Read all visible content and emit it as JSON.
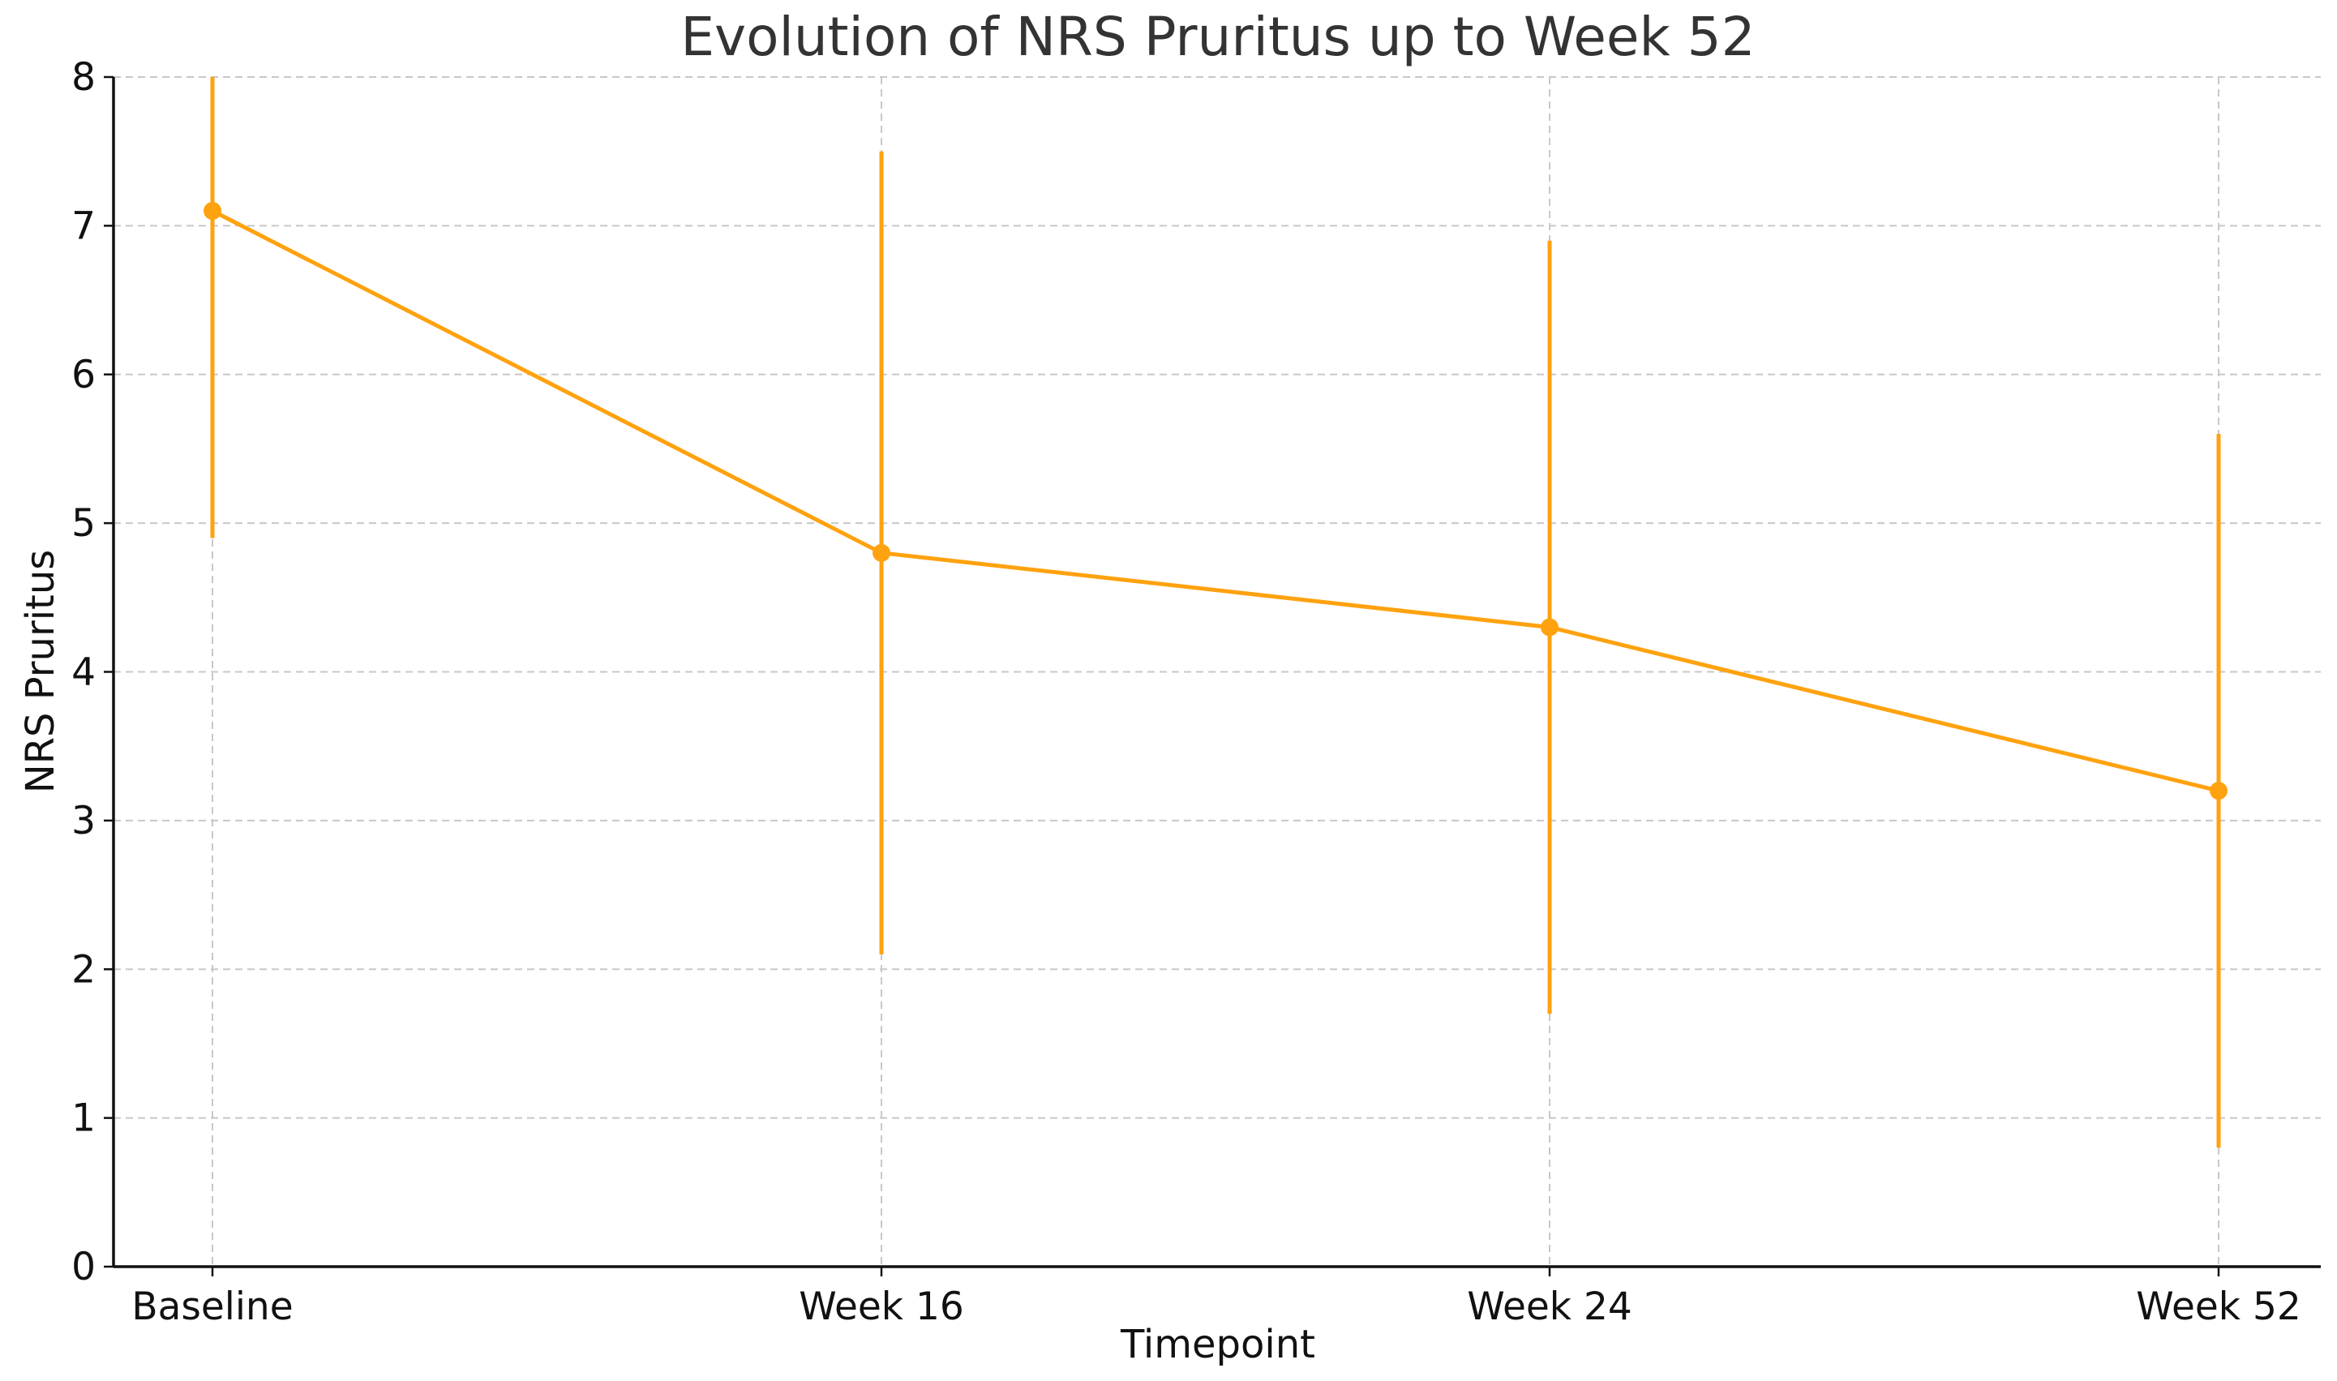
{
  "chart_data": {
    "type": "line",
    "title": "Evolution of NRS Pruritus up to Week 52",
    "xlabel": "Timepoint",
    "ylabel": "NRS Pruritus",
    "categories": [
      "Baseline",
      "Week 16",
      "Week 24",
      "Week 52"
    ],
    "series": [
      {
        "name": "NRS Pruritus",
        "values": [
          7.1,
          4.8,
          4.3,
          3.2
        ],
        "error_low": [
          4.9,
          2.1,
          1.7,
          0.8
        ],
        "error_high": [
          8.0,
          7.5,
          6.9,
          5.6
        ],
        "color": "#FFA20F"
      }
    ],
    "ylim": [
      0,
      8
    ],
    "yticks": [
      "0",
      "1",
      "2",
      "3",
      "4",
      "5",
      "6",
      "7",
      "8"
    ],
    "grid": true,
    "legend": "none"
  }
}
